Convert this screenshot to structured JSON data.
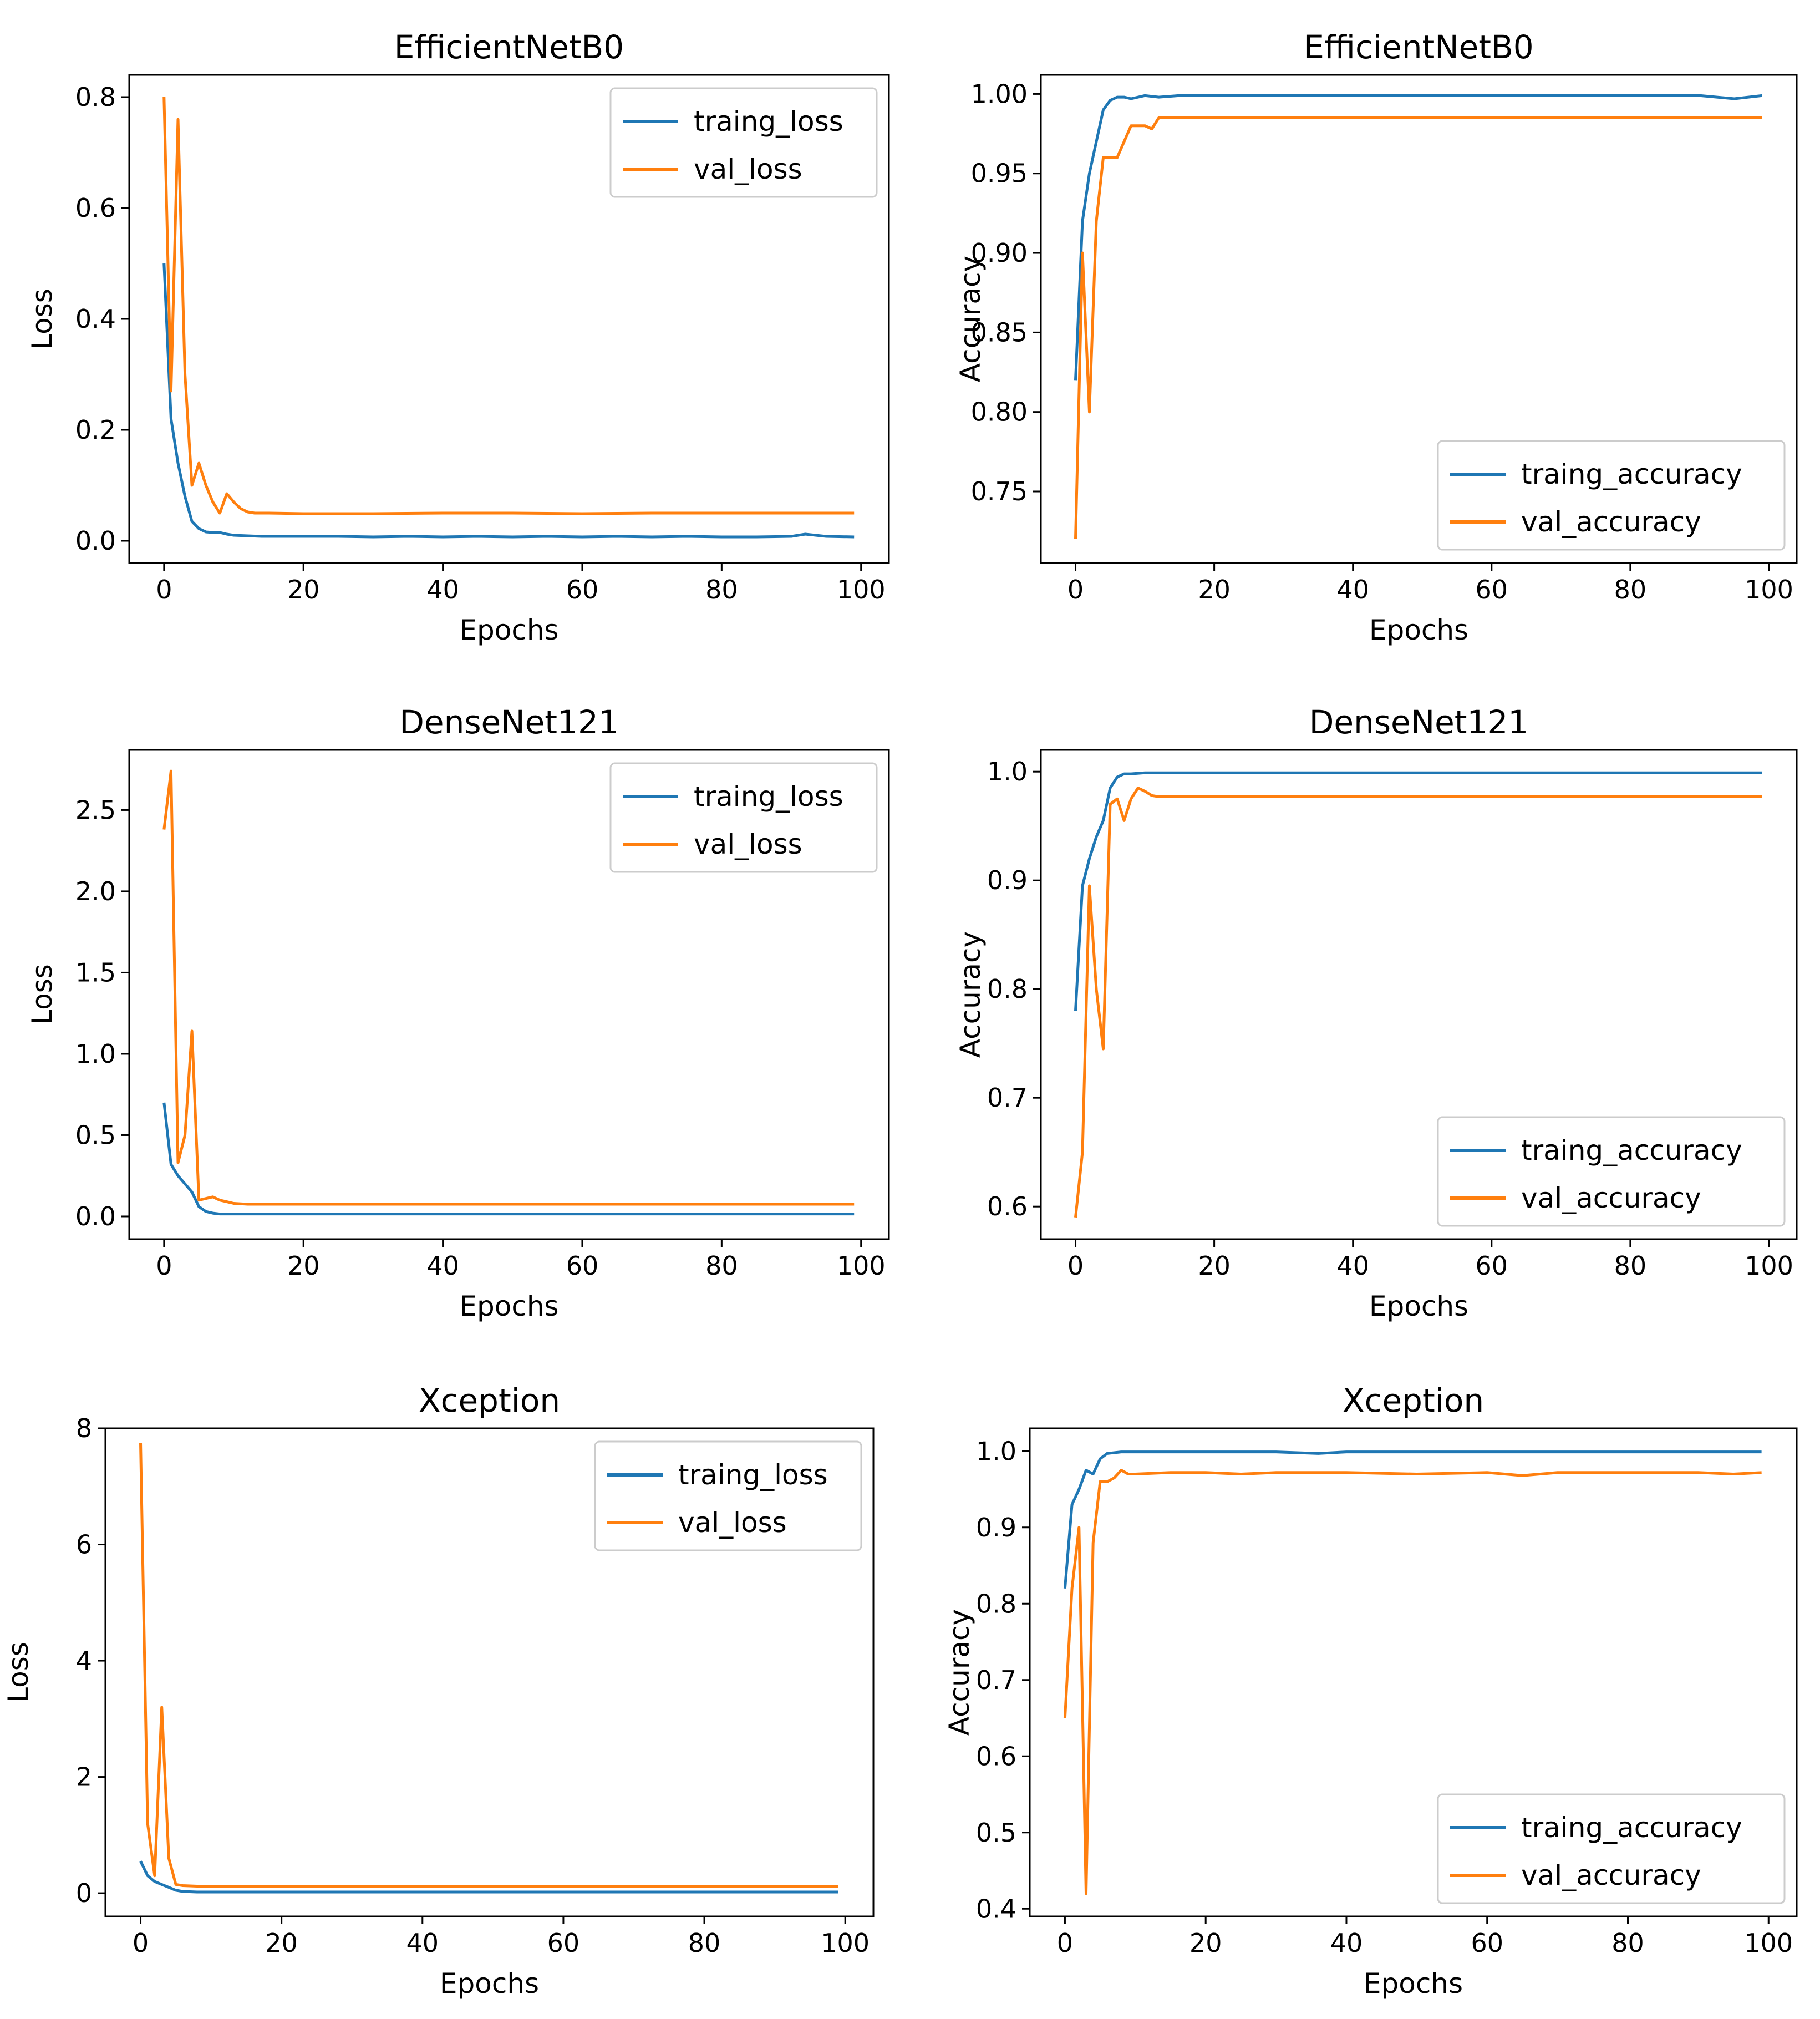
{
  "colors": {
    "train": "#1f77b4",
    "val": "#ff7f0e"
  },
  "chart_data": [
    {
      "type": "line",
      "title": "EfficientNetB0",
      "xlabel": "Epochs",
      "ylabel": "Loss",
      "xlim": [
        -5,
        104
      ],
      "ylim": [
        -0.04,
        0.84
      ],
      "xticks": [
        0,
        20,
        40,
        60,
        80,
        100
      ],
      "yticks": [
        0.0,
        0.2,
        0.4,
        0.6,
        0.8
      ],
      "ytick_labels": [
        "0.0",
        "0.2",
        "0.4",
        "0.6",
        "0.8"
      ],
      "legend": "upper right",
      "series": [
        {
          "name": "traing_loss",
          "color": "#1f77b4",
          "x": [
            0,
            1,
            2,
            3,
            4,
            5,
            6,
            7,
            8,
            9,
            10,
            12,
            14,
            16,
            20,
            25,
            30,
            35,
            40,
            45,
            50,
            55,
            60,
            65,
            70,
            75,
            80,
            85,
            90,
            92,
            95,
            99
          ],
          "y": [
            0.5,
            0.22,
            0.14,
            0.08,
            0.035,
            0.022,
            0.016,
            0.015,
            0.015,
            0.012,
            0.01,
            0.009,
            0.008,
            0.008,
            0.008,
            0.008,
            0.007,
            0.008,
            0.007,
            0.008,
            0.007,
            0.008,
            0.007,
            0.008,
            0.007,
            0.008,
            0.007,
            0.007,
            0.008,
            0.012,
            0.008,
            0.007
          ]
        },
        {
          "name": "val_loss",
          "color": "#ff7f0e",
          "x": [
            0,
            1,
            2,
            3,
            4,
            5,
            6,
            7,
            8,
            9,
            10,
            11,
            12,
            13,
            15,
            20,
            30,
            40,
            50,
            60,
            70,
            80,
            90,
            99
          ],
          "y": [
            0.8,
            0.27,
            0.76,
            0.3,
            0.1,
            0.14,
            0.1,
            0.07,
            0.05,
            0.085,
            0.07,
            0.058,
            0.052,
            0.05,
            0.05,
            0.049,
            0.049,
            0.05,
            0.05,
            0.049,
            0.05,
            0.05,
            0.05,
            0.05
          ]
        }
      ]
    },
    {
      "type": "line",
      "title": "EfficientNetB0",
      "xlabel": "Epochs",
      "ylabel": "Accuracy",
      "xlim": [
        -5,
        104
      ],
      "ylim": [
        0.705,
        1.012
      ],
      "xticks": [
        0,
        20,
        40,
        60,
        80,
        100
      ],
      "yticks": [
        0.75,
        0.8,
        0.85,
        0.9,
        0.95,
        1.0
      ],
      "ytick_labels": [
        "0.75",
        "0.80",
        "0.85",
        "0.90",
        "0.95",
        "1.00"
      ],
      "legend": "lower right",
      "series": [
        {
          "name": "traing_accuracy",
          "color": "#1f77b4",
          "x": [
            0,
            1,
            2,
            3,
            4,
            5,
            6,
            7,
            8,
            10,
            12,
            15,
            20,
            25,
            30,
            35,
            40,
            45,
            50,
            55,
            60,
            65,
            70,
            75,
            80,
            85,
            90,
            95,
            99
          ],
          "y": [
            0.82,
            0.92,
            0.95,
            0.97,
            0.99,
            0.996,
            0.998,
            0.998,
            0.997,
            0.999,
            0.998,
            0.999,
            0.999,
            0.999,
            0.999,
            0.999,
            0.999,
            0.999,
            0.999,
            0.999,
            0.999,
            0.999,
            0.999,
            0.999,
            0.999,
            0.999,
            0.999,
            0.997,
            0.999
          ]
        },
        {
          "name": "val_accuracy",
          "color": "#ff7f0e",
          "x": [
            0,
            1,
            2,
            3,
            4,
            5,
            6,
            7,
            8,
            9,
            10,
            11,
            12,
            13,
            20,
            30,
            40,
            50,
            60,
            70,
            80,
            90,
            99
          ],
          "y": [
            0.72,
            0.9,
            0.8,
            0.92,
            0.96,
            0.96,
            0.96,
            0.97,
            0.98,
            0.98,
            0.98,
            0.978,
            0.985,
            0.985,
            0.985,
            0.985,
            0.985,
            0.985,
            0.985,
            0.985,
            0.985,
            0.985,
            0.985
          ]
        }
      ]
    },
    {
      "type": "line",
      "title": "DenseNet121",
      "xlabel": "Epochs",
      "ylabel": "Loss",
      "xlim": [
        -5,
        104
      ],
      "ylim": [
        -0.14,
        2.87
      ],
      "xticks": [
        0,
        20,
        40,
        60,
        80,
        100
      ],
      "yticks": [
        0.0,
        0.5,
        1.0,
        1.5,
        2.0,
        2.5
      ],
      "ytick_labels": [
        "0.0",
        "0.5",
        "1.0",
        "1.5",
        "2.0",
        "2.5"
      ],
      "legend": "upper right",
      "series": [
        {
          "name": "traing_loss",
          "color": "#1f77b4",
          "x": [
            0,
            1,
            2,
            3,
            4,
            5,
            6,
            7,
            8,
            10,
            15,
            20,
            30,
            40,
            50,
            60,
            70,
            80,
            90,
            99
          ],
          "y": [
            0.7,
            0.32,
            0.25,
            0.2,
            0.15,
            0.06,
            0.03,
            0.02,
            0.015,
            0.015,
            0.015,
            0.015,
            0.015,
            0.015,
            0.015,
            0.015,
            0.015,
            0.015,
            0.015,
            0.015
          ]
        },
        {
          "name": "val_loss",
          "color": "#ff7f0e",
          "x": [
            0,
            1,
            2,
            3,
            4,
            5,
            6,
            7,
            8,
            9,
            10,
            12,
            20,
            30,
            40,
            50,
            60,
            70,
            80,
            90,
            99
          ],
          "y": [
            2.38,
            2.74,
            0.33,
            0.5,
            1.14,
            0.1,
            0.11,
            0.12,
            0.1,
            0.09,
            0.08,
            0.075,
            0.075,
            0.075,
            0.075,
            0.075,
            0.075,
            0.075,
            0.075,
            0.075,
            0.075
          ]
        }
      ]
    },
    {
      "type": "line",
      "title": "DenseNet121",
      "xlabel": "Epochs",
      "ylabel": "Accuracy",
      "xlim": [
        -5,
        104
      ],
      "ylim": [
        0.57,
        1.02
      ],
      "xticks": [
        0,
        20,
        40,
        60,
        80,
        100
      ],
      "yticks": [
        0.6,
        0.7,
        0.8,
        0.9,
        1.0
      ],
      "ytick_labels": [
        "0.6",
        "0.7",
        "0.8",
        "0.9",
        "1.0"
      ],
      "legend": "lower right",
      "series": [
        {
          "name": "traing_accuracy",
          "color": "#1f77b4",
          "x": [
            0,
            1,
            2,
            3,
            4,
            5,
            6,
            7,
            8,
            10,
            15,
            20,
            30,
            40,
            50,
            60,
            70,
            80,
            90,
            99
          ],
          "y": [
            0.78,
            0.895,
            0.92,
            0.94,
            0.955,
            0.985,
            0.995,
            0.998,
            0.998,
            0.999,
            0.999,
            0.999,
            0.999,
            0.999,
            0.999,
            0.999,
            0.999,
            0.999,
            0.999,
            0.999
          ]
        },
        {
          "name": "val_accuracy",
          "color": "#ff7f0e",
          "x": [
            0,
            1,
            2,
            3,
            4,
            5,
            6,
            7,
            8,
            9,
            10,
            11,
            12,
            20,
            30,
            40,
            50,
            60,
            70,
            80,
            90,
            99
          ],
          "y": [
            0.59,
            0.65,
            0.895,
            0.8,
            0.745,
            0.97,
            0.975,
            0.955,
            0.975,
            0.985,
            0.982,
            0.978,
            0.977,
            0.977,
            0.977,
            0.977,
            0.977,
            0.977,
            0.977,
            0.977,
            0.977,
            0.977
          ]
        }
      ]
    },
    {
      "type": "line",
      "title": "Xception",
      "xlabel": "Epochs",
      "ylabel": "Loss",
      "xlim": [
        -5,
        104
      ],
      "ylim": [
        -0.4,
        8.0
      ],
      "xticks": [
        0,
        20,
        40,
        60,
        80,
        100
      ],
      "yticks": [
        0,
        2,
        4,
        6,
        8
      ],
      "ytick_labels": [
        "0",
        "2",
        "4",
        "6",
        "8"
      ],
      "legend": "upper right",
      "series": [
        {
          "name": "traing_loss",
          "color": "#1f77b4",
          "x": [
            0,
            1,
            2,
            3,
            4,
            5,
            6,
            8,
            10,
            20,
            30,
            40,
            50,
            60,
            70,
            80,
            90,
            99
          ],
          "y": [
            0.55,
            0.3,
            0.2,
            0.15,
            0.1,
            0.05,
            0.03,
            0.02,
            0.02,
            0.02,
            0.02,
            0.02,
            0.02,
            0.02,
            0.02,
            0.02,
            0.02,
            0.02
          ]
        },
        {
          "name": "val_loss",
          "color": "#ff7f0e",
          "x": [
            0,
            1,
            2,
            3,
            4,
            5,
            6,
            8,
            10,
            20,
            30,
            40,
            50,
            60,
            70,
            80,
            90,
            99
          ],
          "y": [
            7.75,
            1.2,
            0.3,
            3.2,
            0.6,
            0.15,
            0.13,
            0.12,
            0.12,
            0.12,
            0.12,
            0.12,
            0.12,
            0.12,
            0.12,
            0.12,
            0.12,
            0.12
          ]
        }
      ]
    },
    {
      "type": "line",
      "title": "Xception",
      "xlabel": "Epochs",
      "ylabel": "Accuracy",
      "xlim": [
        -5,
        104
      ],
      "ylim": [
        0.39,
        1.03
      ],
      "xticks": [
        0,
        20,
        40,
        60,
        80,
        100
      ],
      "yticks": [
        0.4,
        0.5,
        0.6,
        0.7,
        0.8,
        0.9,
        1.0
      ],
      "ytick_labels": [
        "0.4",
        "0.5",
        "0.6",
        "0.7",
        "0.8",
        "0.9",
        "1.0"
      ],
      "legend": "lower right",
      "series": [
        {
          "name": "traing_accuracy",
          "color": "#1f77b4",
          "x": [
            0,
            1,
            2,
            3,
            4,
            5,
            6,
            7,
            8,
            10,
            15,
            20,
            30,
            36,
            40,
            50,
            60,
            70,
            80,
            90,
            99
          ],
          "y": [
            0.82,
            0.93,
            0.95,
            0.975,
            0.97,
            0.99,
            0.997,
            0.998,
            0.999,
            0.999,
            0.999,
            0.999,
            0.999,
            0.997,
            0.999,
            0.999,
            0.999,
            0.999,
            0.999,
            0.999,
            0.999
          ]
        },
        {
          "name": "val_accuracy",
          "color": "#ff7f0e",
          "x": [
            0,
            1,
            2,
            3,
            4,
            5,
            6,
            7,
            8,
            9,
            10,
            15,
            20,
            25,
            30,
            40,
            50,
            60,
            65,
            70,
            80,
            90,
            95,
            99
          ],
          "y": [
            0.65,
            0.82,
            0.9,
            0.42,
            0.88,
            0.96,
            0.96,
            0.965,
            0.975,
            0.97,
            0.97,
            0.972,
            0.972,
            0.97,
            0.972,
            0.972,
            0.97,
            0.972,
            0.968,
            0.972,
            0.972,
            0.972,
            0.97,
            0.972
          ]
        }
      ]
    }
  ]
}
